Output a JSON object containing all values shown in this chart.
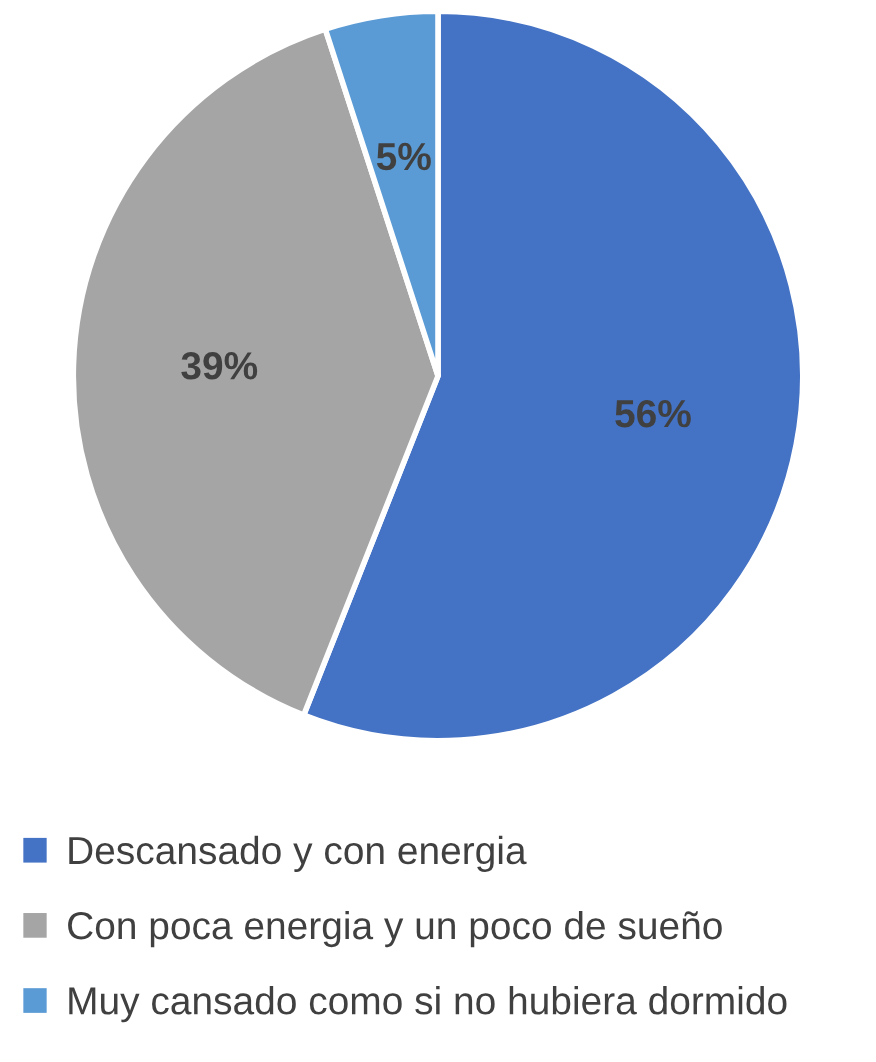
{
  "chart_data": {
    "type": "pie",
    "categories": [
      "Descansado y con energia",
      "Con poca energia y un poco de sueño",
      "Muy cansado como si no hubiera dormido"
    ],
    "values": [
      56,
      39,
      5
    ],
    "colors": [
      "#4472c4",
      "#a5a5a5",
      "#5b9bd5"
    ],
    "value_labels": [
      "56%",
      "39%",
      "5%"
    ],
    "legend": "bottom"
  }
}
